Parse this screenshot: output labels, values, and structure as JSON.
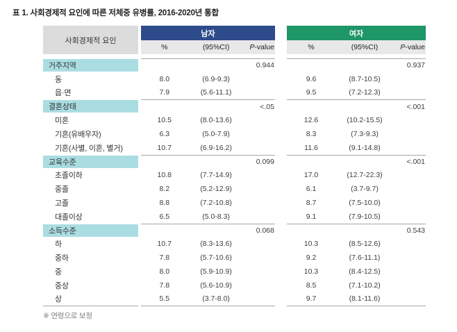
{
  "title": "표 1. 사회경제적 요인에 따른 저체중 유병률, 2016-2020년 통합",
  "footnote": "※ 연령으로 보정",
  "colors": {
    "male_header": "#2e4c8b",
    "female_header": "#1e9668",
    "subheader_bg": "#e8e8e8",
    "row_header_bg": "#dcdcdc",
    "section_bg": "#aadde2",
    "line": "#a6a6a6",
    "title_text": "#222222",
    "footnote_text": "#808080"
  },
  "table": {
    "row_header": "사회경제적 요인",
    "groups": [
      {
        "label": "남자"
      },
      {
        "label": "여자"
      }
    ],
    "subheaders": {
      "pct": "%",
      "ci": "(95%CI)",
      "p_italic": "P",
      "p_rest": "-value"
    },
    "sections": [
      {
        "label": "거주지역",
        "p_male": "0.944",
        "p_female": "0.937",
        "rows": [
          {
            "label": "동",
            "m_pct": "8.0",
            "m_ci": "(6.9-9.3)",
            "f_pct": "9.6",
            "f_ci": "(8.7-10.5)"
          },
          {
            "label": "읍·면",
            "m_pct": "7.9",
            "m_ci": "(5.6-11.1)",
            "f_pct": "9.5",
            "f_ci": "(7.2-12.3)"
          }
        ]
      },
      {
        "label": "결혼상태",
        "p_male": "<.05",
        "p_female": "<.001",
        "rows": [
          {
            "label": "미혼",
            "m_pct": "10.5",
            "m_ci": "(8.0-13.6)",
            "f_pct": "12.6",
            "f_ci": "(10.2-15.5)"
          },
          {
            "label": "기혼(유배우자)",
            "m_pct": "6.3",
            "m_ci": "(5.0-7.9)",
            "f_pct": "8.3",
            "f_ci": "(7.3-9.3)"
          },
          {
            "label": "기혼(사별, 이혼, 별거)",
            "m_pct": "10.7",
            "m_ci": "(6.9-16.2)",
            "f_pct": "11.6",
            "f_ci": "(9.1-14.8)"
          }
        ]
      },
      {
        "label": "교육수준",
        "p_male": "0.099",
        "p_female": "<.001",
        "rows": [
          {
            "label": "초졸이하",
            "m_pct": "10.8",
            "m_ci": "(7.7-14.9)",
            "f_pct": "17.0",
            "f_ci": "(12.7-22.3)"
          },
          {
            "label": "중졸",
            "m_pct": "8.2",
            "m_ci": "(5.2-12.9)",
            "f_pct": "6.1",
            "f_ci": "(3.7-9.7)"
          },
          {
            "label": "고졸",
            "m_pct": "8.8",
            "m_ci": "(7.2-10.8)",
            "f_pct": "8.7",
            "f_ci": "(7.5-10.0)"
          },
          {
            "label": "대졸이상",
            "m_pct": "6.5",
            "m_ci": "(5.0-8.3)",
            "f_pct": "9.1",
            "f_ci": "(7.9-10.5)"
          }
        ]
      },
      {
        "label": "소득수준",
        "p_male": "0.068",
        "p_female": "0.543",
        "rows": [
          {
            "label": "하",
            "m_pct": "10.7",
            "m_ci": "(8.3-13.6)",
            "f_pct": "10.3",
            "f_ci": "(8.5-12.6)"
          },
          {
            "label": "중하",
            "m_pct": "7.8",
            "m_ci": "(5.7-10.6)",
            "f_pct": "9.2",
            "f_ci": "(7.6-11.1)"
          },
          {
            "label": "중",
            "m_pct": "8.0",
            "m_ci": "(5.9-10.9)",
            "f_pct": "10.3",
            "f_ci": "(8.4-12.5)"
          },
          {
            "label": "중상",
            "m_pct": "7.8",
            "m_ci": "(5.6-10.9)",
            "f_pct": "8.5",
            "f_ci": "(7.1-10.2)"
          },
          {
            "label": "상",
            "m_pct": "5.5",
            "m_ci": "(3.7-8.0)",
            "f_pct": "9.7",
            "f_ci": "(8.1-11.6)"
          }
        ]
      }
    ]
  }
}
